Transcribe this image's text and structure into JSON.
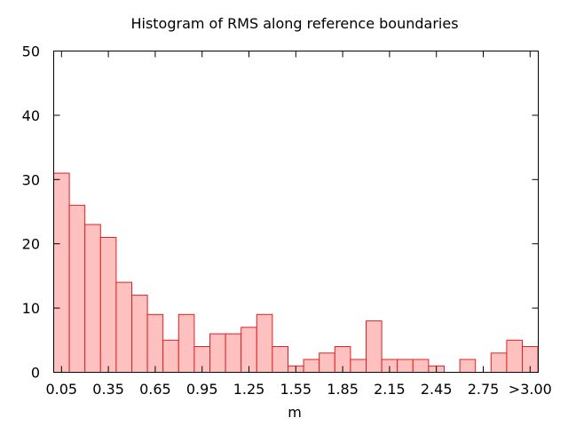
{
  "chart_data": {
    "type": "bar",
    "title": "Histogram of RMS along reference boundaries",
    "xlabel": "m",
    "ylabel": "",
    "ylim": [
      0,
      50
    ],
    "yticks": [
      0,
      10,
      20,
      30,
      40,
      50
    ],
    "xtick_labels": [
      "0.05",
      "0.35",
      "0.65",
      "0.95",
      "1.25",
      "1.55",
      "1.85",
      "2.15",
      "2.45",
      "2.75",
      ">3.00"
    ],
    "bin_width": 0.1,
    "bins": [
      0.05,
      0.15,
      0.25,
      0.35,
      0.45,
      0.55,
      0.65,
      0.75,
      0.85,
      0.95,
      1.05,
      1.15,
      1.25,
      1.35,
      1.45,
      1.55,
      1.65,
      1.75,
      1.85,
      1.95,
      2.05,
      2.15,
      2.25,
      2.35,
      2.45,
      2.55,
      2.65,
      2.75,
      2.85,
      2.95,
      3.05
    ],
    "values": [
      31,
      26,
      23,
      21,
      14,
      12,
      9,
      5,
      9,
      4,
      6,
      6,
      7,
      9,
      4,
      1,
      2,
      3,
      4,
      2,
      8,
      2,
      2,
      2,
      1,
      0,
      2,
      0,
      3,
      5,
      4
    ],
    "colors": {
      "fill": "#ffc0c0",
      "stroke": "#e02020"
    },
    "grid": false,
    "legend": "none"
  }
}
